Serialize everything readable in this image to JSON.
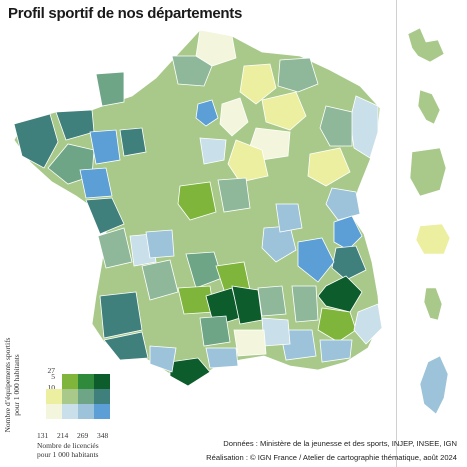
{
  "title": "Profil sportif de nos départements",
  "legend": {
    "y_label_line1": "Nombre d’équipements sportifs",
    "y_label_line2": "pour 1 000 habitants",
    "y_ticks": [
      "1",
      "5",
      "10",
      "27"
    ],
    "x_label_line1": "Nombre de licenciés",
    "x_label_line2": "pour 1 000 habitants",
    "x_ticks": [
      "131",
      "214",
      "269",
      "348"
    ],
    "colors": {
      "high_equip": [
        "#ffffff",
        "#7fb53a",
        "#2f8a3c",
        "#0d5c2c"
      ],
      "mid_equip": [
        "#ecefa0",
        "#a8c98a",
        "#6fa587",
        "#3f7f7c"
      ],
      "low_equip": [
        "#ffffff",
        "#c9dfea",
        "#9dc3da",
        "#5b9fd6"
      ]
    }
  },
  "credits": {
    "line1": "Données : Ministère de la jeunesse et des sports, INJEP, INSEE, IGN",
    "line2": "Réalisation : © IGN France / Atelier de cartographie thématique, août 2024"
  },
  "overseas": [
    "Guadeloupe",
    "Martinique",
    "Guyane",
    "La Réunion",
    "Mayotte",
    "Corse"
  ],
  "map_colors": {
    "border": "#ffffff",
    "light_yellow": "#ecefa0",
    "light_blue": "#c9dfea",
    "mid_blue": "#9dc3da",
    "blue": "#5b9fd6",
    "sage": "#a8c98a",
    "grey_green": "#8fb89a",
    "teal": "#6fa587",
    "dark_teal": "#3f7f7c",
    "lime": "#7fb53a",
    "dark_green": "#0d5c2c",
    "near_white": "#f3f6dc"
  }
}
